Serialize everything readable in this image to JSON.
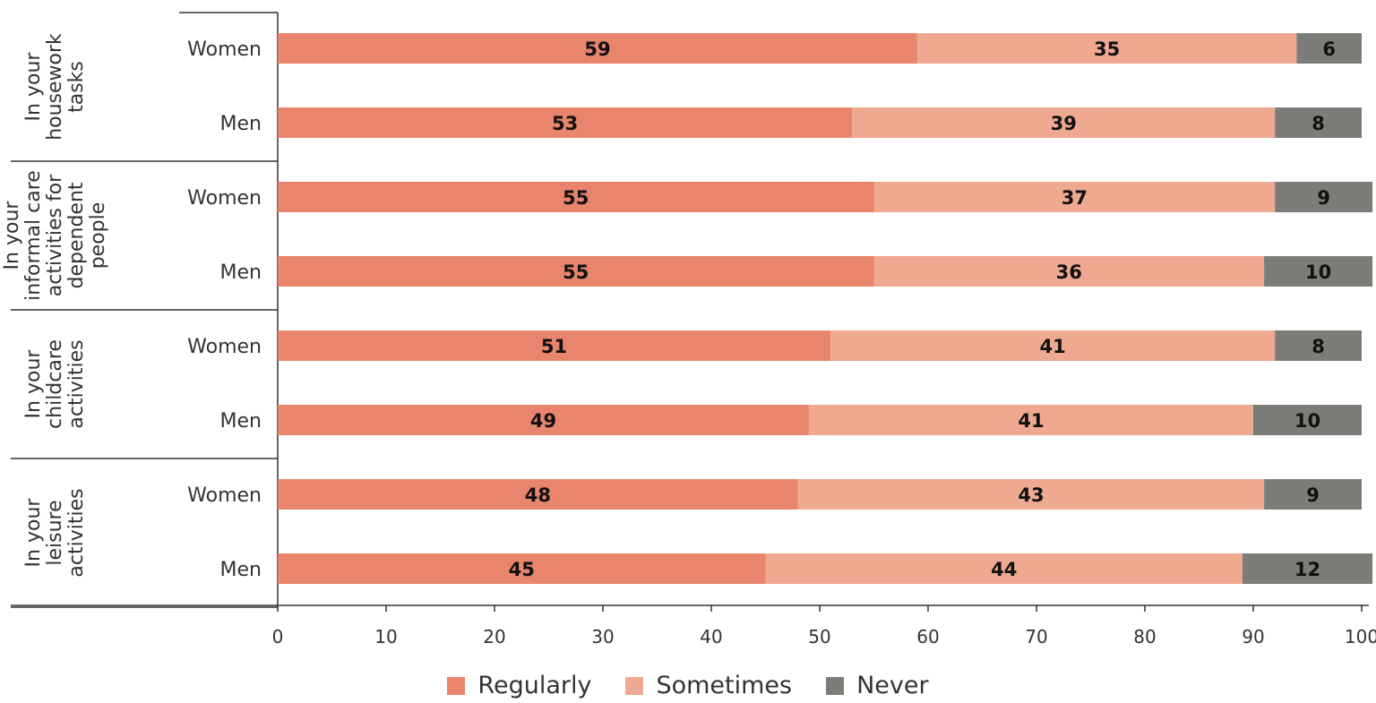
{
  "chart_data": {
    "type": "bar",
    "orientation": "horizontal",
    "stacked": true,
    "groups": [
      {
        "label": "In your housework tasks",
        "label_lines": [
          "In your",
          "housework",
          "tasks"
        ]
      },
      {
        "label": "In your informal care activities for dependent people",
        "label_lines": [
          "In your",
          "informal care",
          "activities for",
          "dependent",
          "people"
        ]
      },
      {
        "label": "In your childcare activities",
        "label_lines": [
          "In your",
          "childcare",
          "activities"
        ]
      },
      {
        "label": "In your leisure activities",
        "label_lines": [
          "In your",
          "leisure",
          "activities"
        ]
      }
    ],
    "rows": [
      {
        "group": 0,
        "label": "Women",
        "values": [
          59,
          35,
          6
        ]
      },
      {
        "group": 0,
        "label": "Men",
        "values": [
          53,
          39,
          8
        ]
      },
      {
        "group": 1,
        "label": "Women",
        "values": [
          55,
          37,
          9
        ]
      },
      {
        "group": 1,
        "label": "Men",
        "values": [
          55,
          36,
          10
        ]
      },
      {
        "group": 2,
        "label": "Women",
        "values": [
          51,
          41,
          8
        ]
      },
      {
        "group": 2,
        "label": "Men",
        "values": [
          49,
          41,
          10
        ]
      },
      {
        "group": 3,
        "label": "Women",
        "values": [
          48,
          43,
          9
        ]
      },
      {
        "group": 3,
        "label": "Men",
        "values": [
          45,
          44,
          12
        ]
      }
    ],
    "series": [
      {
        "name": "Regularly",
        "color": "#e8856c"
      },
      {
        "name": "Sometimes",
        "color": "#efa991"
      },
      {
        "name": "Never",
        "color": "#7b7e78"
      }
    ],
    "xlim": [
      0,
      100
    ],
    "xticks": [
      0,
      10,
      20,
      30,
      40,
      50,
      60,
      70,
      80,
      90,
      100
    ],
    "title": "",
    "xlabel": "",
    "ylabel": "",
    "grid": false,
    "legend_position": "bottom-center"
  }
}
